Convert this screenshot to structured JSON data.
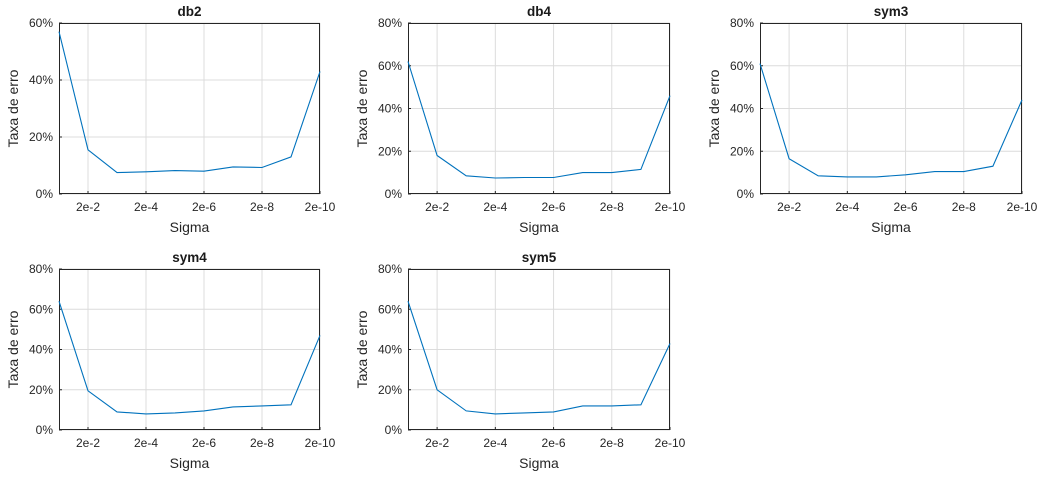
{
  "chart_data": [
    {
      "type": "line",
      "title": "db2",
      "xlabel": "Sigma",
      "ylabel": "Taxa de erro",
      "x_tick_labels": [
        "2e-2",
        "2e-4",
        "2e-6",
        "2e-8",
        "2e-10"
      ],
      "y_tick_labels": [
        "0%",
        "20%",
        "40%",
        "60%"
      ],
      "ylim": [
        0,
        60
      ],
      "grid": true,
      "series": [
        {
          "color": "#0072BD",
          "values": [
            57,
            15.5,
            7.5,
            7.8,
            8.2,
            8.0,
            9.5,
            9.3,
            13,
            43
          ]
        }
      ]
    },
    {
      "type": "line",
      "title": "db4",
      "xlabel": "Sigma",
      "ylabel": "Taxa de erro",
      "x_tick_labels": [
        "2e-2",
        "2e-4",
        "2e-6",
        "2e-8",
        "2e-10"
      ],
      "y_tick_labels": [
        "0%",
        "20%",
        "40%",
        "60%",
        "80%"
      ],
      "ylim": [
        0,
        80
      ],
      "grid": true,
      "series": [
        {
          "color": "#0072BD",
          "values": [
            62,
            18,
            8.5,
            7.5,
            7.7,
            7.7,
            10,
            10,
            11.5,
            46
          ]
        }
      ]
    },
    {
      "type": "line",
      "title": "sym3",
      "xlabel": "Sigma",
      "ylabel": "Taxa de erro",
      "x_tick_labels": [
        "2e-2",
        "2e-4",
        "2e-6",
        "2e-8",
        "2e-10"
      ],
      "y_tick_labels": [
        "0%",
        "20%",
        "40%",
        "60%",
        "80%"
      ],
      "ylim": [
        0,
        80
      ],
      "grid": true,
      "series": [
        {
          "color": "#0072BD",
          "values": [
            61,
            16.5,
            8.5,
            8,
            8,
            9,
            10.5,
            10.5,
            13,
            44
          ]
        }
      ]
    },
    {
      "type": "line",
      "title": "sym4",
      "xlabel": "Sigma",
      "ylabel": "Taxa de erro",
      "x_tick_labels": [
        "2e-2",
        "2e-4",
        "2e-6",
        "2e-8",
        "2e-10"
      ],
      "y_tick_labels": [
        "0%",
        "20%",
        "40%",
        "60%",
        "80%"
      ],
      "ylim": [
        0,
        80
      ],
      "grid": true,
      "series": [
        {
          "color": "#0072BD",
          "values": [
            64,
            19.5,
            9,
            8,
            8.5,
            9.5,
            11.5,
            12,
            12.5,
            47
          ]
        }
      ]
    },
    {
      "type": "line",
      "title": "sym5",
      "xlabel": "Sigma",
      "ylabel": "Taxa de erro",
      "x_tick_labels": [
        "2e-2",
        "2e-4",
        "2e-6",
        "2e-8",
        "2e-10"
      ],
      "y_tick_labels": [
        "0%",
        "20%",
        "40%",
        "60%",
        "80%"
      ],
      "ylim": [
        0,
        80
      ],
      "grid": true,
      "series": [
        {
          "color": "#0072BD",
          "values": [
            64,
            20,
            9.5,
            8,
            8.5,
            9,
            12,
            12,
            12.5,
            43
          ]
        }
      ]
    }
  ]
}
